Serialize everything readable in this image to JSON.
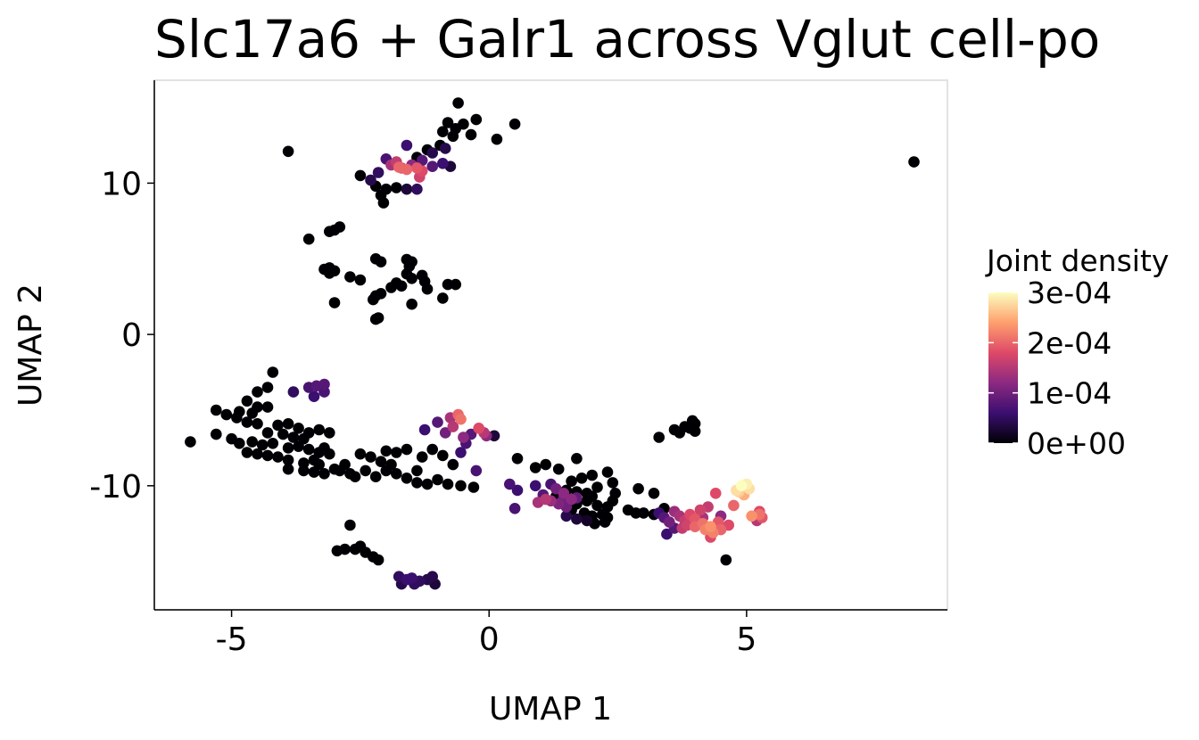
{
  "chart_data": {
    "type": "scatter",
    "title": "Slc17a6 + Galr1 across Vglut cell-po",
    "xlabel": "UMAP 1",
    "ylabel": "UMAP 2",
    "xlim": [
      -6.5,
      8.9
    ],
    "ylim": [
      -18.2,
      16.8
    ],
    "x_ticks": [
      -5,
      0,
      5
    ],
    "x_tick_labels": [
      "-5",
      "0",
      "5"
    ],
    "y_ticks": [
      -10,
      0,
      10
    ],
    "y_tick_labels": [
      "-10",
      "0",
      "10"
    ],
    "grid": false,
    "legend": {
      "title": "Joint density",
      "placement": "right",
      "type": "colorbar",
      "range": [
        0,
        0.0003
      ],
      "ticks": [
        0,
        0.0001,
        0.0002,
        0.0003
      ],
      "tick_labels": [
        "0e+00",
        "1e-04",
        "2e-04",
        "3e-04"
      ],
      "colors": [
        "#000004",
        "#3b0f70",
        "#8c2981",
        "#de4968",
        "#fe9f6d",
        "#fcfdbf"
      ]
    },
    "points": [
      [
        8.25,
        11.4,
        0
      ],
      [
        -3.9,
        12.1,
        0
      ],
      [
        -0.6,
        15.3,
        0
      ],
      [
        -0.8,
        14.0,
        0
      ],
      [
        -0.5,
        13.9,
        0
      ],
      [
        -0.65,
        13.6,
        0
      ],
      [
        -0.9,
        13.4,
        0
      ],
      [
        -0.7,
        13.1,
        0
      ],
      [
        0.5,
        13.9,
        0
      ],
      [
        -0.25,
        14.2,
        0
      ],
      [
        -0.35,
        13.2,
        0
      ],
      [
        0.15,
        12.9,
        0
      ],
      [
        -0.95,
        12.5,
        0
      ],
      [
        -1.2,
        12.2,
        0
      ],
      [
        -1.4,
        11.7,
        0
      ],
      [
        -1.1,
        12.0,
        4e-05
      ],
      [
        -0.85,
        12.3,
        4e-05
      ],
      [
        -1.6,
        12.5,
        6e-05
      ],
      [
        -1.3,
        11.5,
        8e-05
      ],
      [
        -1.5,
        11.2,
        0.00012
      ],
      [
        -1.8,
        11.4,
        0.00016
      ],
      [
        -1.7,
        11.0,
        0.00018
      ],
      [
        -1.6,
        10.9,
        0.0002
      ],
      [
        -1.4,
        11.0,
        0.00019
      ],
      [
        -1.3,
        10.8,
        0.00018
      ],
      [
        -1.35,
        10.4,
        0.00017
      ],
      [
        -1.9,
        11.2,
        0.00014
      ],
      [
        -1.75,
        11.05,
        0.0002
      ],
      [
        -2.0,
        11.6,
        7e-05
      ],
      [
        -1.1,
        11.1,
        8e-05
      ],
      [
        -0.9,
        11.3,
        6e-05
      ],
      [
        -0.75,
        11.1,
        3e-05
      ],
      [
        -2.15,
        10.7,
        5e-05
      ],
      [
        -2.3,
        10.2,
        4e-05
      ],
      [
        -2.5,
        10.5,
        0
      ],
      [
        -2.2,
        9.8,
        0
      ],
      [
        -2.0,
        9.6,
        0
      ],
      [
        -1.8,
        9.7,
        0
      ],
      [
        -1.6,
        9.6,
        3e-05
      ],
      [
        -1.4,
        9.6,
        5e-05
      ],
      [
        -2.1,
        9.2,
        0
      ],
      [
        -2.05,
        8.7,
        0
      ],
      [
        -3.5,
        6.3,
        0
      ],
      [
        -3.1,
        6.8,
        0
      ],
      [
        -3.0,
        6.9,
        0
      ],
      [
        -2.9,
        7.1,
        0
      ],
      [
        -3.2,
        4.3,
        0
      ],
      [
        -3.1,
        4.4,
        0
      ],
      [
        -3.0,
        4.2,
        0
      ],
      [
        -3.1,
        4.05,
        0
      ],
      [
        -2.7,
        3.8,
        0
      ],
      [
        -2.5,
        3.6,
        0
      ],
      [
        -3.0,
        2.1,
        0
      ],
      [
        -2.2,
        5.0,
        0
      ],
      [
        -2.1,
        4.8,
        0
      ],
      [
        -1.6,
        4.95,
        0
      ],
      [
        -1.5,
        4.8,
        0
      ],
      [
        -1.55,
        4.5,
        0
      ],
      [
        -1.6,
        4.0,
        0
      ],
      [
        -1.5,
        3.7,
        0
      ],
      [
        -1.3,
        3.9,
        0
      ],
      [
        -1.25,
        3.5,
        0
      ],
      [
        -1.8,
        3.4,
        0
      ],
      [
        -1.9,
        3.1,
        0
      ],
      [
        -1.7,
        3.2,
        0
      ],
      [
        -1.2,
        3.0,
        0
      ],
      [
        -0.8,
        3.3,
        0
      ],
      [
        -0.65,
        3.3,
        0
      ],
      [
        -2.2,
        2.55,
        0
      ],
      [
        -2.1,
        2.7,
        0
      ],
      [
        -2.25,
        2.3,
        0
      ],
      [
        -1.5,
        2.0,
        0
      ],
      [
        -0.9,
        2.4,
        0
      ],
      [
        -2.2,
        1.0,
        0
      ],
      [
        -2.15,
        1.1,
        0
      ],
      [
        -4.2,
        -2.5,
        0
      ],
      [
        -4.3,
        -3.5,
        0
      ],
      [
        -4.5,
        -3.8,
        0
      ],
      [
        -4.7,
        -4.4,
        0
      ],
      [
        -4.5,
        -4.8,
        0
      ],
      [
        -4.3,
        -4.8,
        0
      ],
      [
        -5.3,
        -5.0,
        0
      ],
      [
        -5.1,
        -5.3,
        0
      ],
      [
        -4.85,
        -5.1,
        0
      ],
      [
        -4.6,
        -5.2,
        0
      ],
      [
        -4.9,
        -5.5,
        0
      ],
      [
        -4.7,
        -5.8,
        0
      ],
      [
        -4.5,
        -5.9,
        0
      ],
      [
        -4.1,
        -6.0,
        0
      ],
      [
        -3.9,
        -5.9,
        0
      ],
      [
        -3.7,
        -6.2,
        0
      ],
      [
        -3.3,
        -6.3,
        0
      ],
      [
        -3.5,
        -6.5,
        0
      ],
      [
        -3.1,
        -6.5,
        0
      ],
      [
        -4.3,
        -6.5,
        0
      ],
      [
        -4.0,
        -6.6,
        0
      ],
      [
        -3.8,
        -6.8,
        0
      ],
      [
        -3.6,
        -6.9,
        0
      ],
      [
        -5.3,
        -6.6,
        0
      ],
      [
        -5.0,
        -6.9,
        0
      ],
      [
        -4.85,
        -7.2,
        0
      ],
      [
        -4.6,
        -7.1,
        0
      ],
      [
        -4.4,
        -7.3,
        0
      ],
      [
        -4.2,
        -7.2,
        0
      ],
      [
        -3.9,
        -7.5,
        0
      ],
      [
        -3.7,
        -7.4,
        0
      ],
      [
        -3.5,
        -7.6,
        0
      ],
      [
        -3.3,
        -7.8,
        0
      ],
      [
        -3.2,
        -7.5,
        0
      ],
      [
        -3.1,
        -7.9,
        0
      ],
      [
        -5.8,
        -7.1,
        0
      ],
      [
        -4.7,
        -7.8,
        0
      ],
      [
        -4.5,
        -7.9,
        0
      ],
      [
        -4.3,
        -8.0,
        0
      ],
      [
        -4.1,
        -8.1,
        0
      ],
      [
        -3.9,
        -8.3,
        0
      ],
      [
        -3.6,
        -8.5,
        0
      ],
      [
        -3.4,
        -8.3,
        0
      ],
      [
        -3.3,
        -8.6,
        0
      ],
      [
        -3.9,
        -8.9,
        0
      ],
      [
        -3.6,
        -9.0,
        0
      ],
      [
        -3.4,
        -9.1,
        0
      ],
      [
        -3.2,
        -9.2,
        0
      ],
      [
        -2.9,
        -9.0,
        0
      ],
      [
        -2.7,
        -9.2,
        0
      ],
      [
        -2.6,
        -9.4,
        0
      ],
      [
        -2.4,
        -9.0,
        0
      ],
      [
        -2.2,
        -9.4,
        0
      ],
      [
        -2.0,
        -9.0,
        0
      ],
      [
        -1.8,
        -9.2,
        0
      ],
      [
        -1.6,
        -9.5,
        0
      ],
      [
        -1.4,
        -9.8,
        0
      ],
      [
        -1.2,
        -9.9,
        0
      ],
      [
        -1.0,
        -9.6,
        0
      ],
      [
        -0.8,
        -9.9,
        0
      ],
      [
        -0.55,
        -10.0,
        0
      ],
      [
        -0.3,
        -10.1,
        0
      ],
      [
        -2.5,
        -7.9,
        0
      ],
      [
        -2.3,
        -8.1,
        0
      ],
      [
        -2.0,
        -7.7,
        0
      ],
      [
        -1.8,
        -7.8,
        0
      ],
      [
        -1.6,
        -7.6,
        0
      ],
      [
        -1.3,
        -8.1,
        0
      ],
      [
        -1.1,
        -7.6,
        0
      ],
      [
        -0.9,
        -8.0,
        0
      ],
      [
        -0.7,
        -8.6,
        0
      ],
      [
        -2.1,
        -8.4,
        0
      ],
      [
        -1.9,
        -8.6,
        0
      ],
      [
        -1.4,
        -9.0,
        0
      ],
      [
        -3.0,
        -8.9,
        0
      ],
      [
        -2.8,
        -8.6,
        0
      ],
      [
        -3.8,
        -3.8,
        5e-05
      ],
      [
        -3.5,
        -3.5,
        7e-05
      ],
      [
        -3.35,
        -3.4,
        8e-05
      ],
      [
        -3.2,
        -3.3,
        8e-05
      ],
      [
        -3.2,
        -3.8,
        7e-05
      ],
      [
        -3.4,
        -4.1,
        6e-05
      ],
      [
        -1.25,
        -6.3,
        6e-05
      ],
      [
        -1.0,
        -5.8,
        8e-05
      ],
      [
        -0.75,
        -5.5,
        0.00014
      ],
      [
        -0.6,
        -5.3,
        0.0002
      ],
      [
        -0.55,
        -5.6,
        0.00021
      ],
      [
        -0.7,
        -6.1,
        0.00015
      ],
      [
        -0.85,
        -6.5,
        0.0001
      ],
      [
        -0.5,
        -6.8,
        0.00012
      ],
      [
        -0.35,
        -6.6,
        8e-05
      ],
      [
        -0.2,
        -6.2,
        0.00018
      ],
      [
        -0.1,
        -6.5,
        0.00015
      ],
      [
        -0.05,
        -6.7,
        0.00012
      ],
      [
        0.1,
        -6.7,
        3e-05
      ],
      [
        -0.45,
        -7.2,
        7e-05
      ],
      [
        -0.55,
        -7.8,
        6e-05
      ],
      [
        -0.25,
        -9.0,
        7e-05
      ],
      [
        -2.7,
        -12.6,
        0
      ],
      [
        -2.95,
        -14.3,
        0
      ],
      [
        -2.8,
        -14.2,
        0
      ],
      [
        -2.6,
        -14.2,
        0
      ],
      [
        -2.5,
        -14.0,
        0
      ],
      [
        -2.4,
        -14.4,
        0
      ],
      [
        -2.25,
        -14.7,
        0
      ],
      [
        -2.15,
        -14.9,
        0
      ],
      [
        -1.75,
        -16.0,
        5e-05
      ],
      [
        -1.6,
        -16.2,
        6e-05
      ],
      [
        -1.5,
        -16.1,
        6e-05
      ],
      [
        -1.45,
        -16.5,
        5e-05
      ],
      [
        -1.35,
        -16.3,
        5e-05
      ],
      [
        -1.2,
        -16.2,
        4e-05
      ],
      [
        -1.1,
        -16.0,
        4e-05
      ],
      [
        -1.05,
        -16.5,
        3e-05
      ],
      [
        -1.7,
        -16.5,
        4e-05
      ],
      [
        0.55,
        -8.2,
        0
      ],
      [
        0.9,
        -8.8,
        0
      ],
      [
        1.1,
        -8.6,
        0
      ],
      [
        1.35,
        -8.9,
        0
      ],
      [
        1.7,
        -8.2,
        0
      ],
      [
        1.6,
        -9.7,
        0
      ],
      [
        1.8,
        -9.5,
        0
      ],
      [
        2.0,
        -9.3,
        0
      ],
      [
        2.3,
        -9.1,
        0
      ],
      [
        2.4,
        -9.8,
        0
      ],
      [
        2.1,
        -10.1,
        0
      ],
      [
        1.9,
        -10.5,
        0
      ],
      [
        1.7,
        -10.4,
        0
      ],
      [
        1.5,
        -10.3,
        0
      ],
      [
        1.3,
        -10.7,
        0
      ],
      [
        1.5,
        -10.9,
        0
      ],
      [
        1.7,
        -11.2,
        0
      ],
      [
        1.9,
        -11.0,
        0
      ],
      [
        2.1,
        -11.3,
        0
      ],
      [
        2.3,
        -11.4,
        0
      ],
      [
        1.6,
        -11.6,
        0
      ],
      [
        1.85,
        -11.8,
        0
      ],
      [
        2.0,
        -12.0,
        0
      ],
      [
        2.2,
        -11.9,
        0
      ],
      [
        2.3,
        -12.1,
        0
      ],
      [
        1.9,
        -12.3,
        2e-05
      ],
      [
        1.7,
        -12.2,
        3e-05
      ],
      [
        2.05,
        -12.5,
        0
      ],
      [
        2.25,
        -12.4,
        0
      ],
      [
        1.5,
        -12.0,
        4e-05
      ],
      [
        2.4,
        -11.0,
        0
      ],
      [
        2.45,
        -10.5,
        0
      ],
      [
        2.0,
        -10.7,
        0
      ],
      [
        2.7,
        -11.6,
        0
      ],
      [
        2.85,
        -11.8,
        0
      ],
      [
        3.0,
        -11.8,
        0
      ],
      [
        3.2,
        -11.9,
        0
      ],
      [
        3.4,
        -11.5,
        0
      ],
      [
        2.9,
        -10.2,
        0
      ],
      [
        3.2,
        -10.5,
        0
      ],
      [
        3.3,
        -6.8,
        0
      ],
      [
        3.6,
        -6.3,
        0
      ],
      [
        3.8,
        -6.1,
        0
      ],
      [
        3.9,
        -6.2,
        0
      ],
      [
        4.0,
        -5.9,
        0
      ],
      [
        3.95,
        -5.7,
        0
      ],
      [
        4.0,
        -6.4,
        0
      ],
      [
        3.7,
        -6.5,
        0
      ],
      [
        4.6,
        -14.9,
        0
      ],
      [
        0.4,
        -9.9,
        7e-05
      ],
      [
        0.55,
        -10.3,
        6e-05
      ],
      [
        0.5,
        -11.5,
        7e-05
      ],
      [
        0.9,
        -10.0,
        6e-05
      ],
      [
        1.05,
        -10.6,
        8e-05
      ],
      [
        1.2,
        -9.9,
        7e-05
      ],
      [
        1.3,
        -10.2,
        0.0001
      ],
      [
        1.45,
        -10.5,
        0.00012
      ],
      [
        1.45,
        -10.8,
        0.0001
      ],
      [
        1.35,
        -11.2,
        0.00011
      ],
      [
        1.2,
        -11.0,
        0.00013
      ],
      [
        1.1,
        -10.9,
        0.00015
      ],
      [
        0.95,
        -11.1,
        0.00014
      ],
      [
        1.6,
        -10.9,
        0.00012
      ],
      [
        1.5,
        -11.4,
        0.0001
      ],
      [
        1.7,
        -10.8,
        9e-05
      ],
      [
        3.3,
        -11.8,
        6e-05
      ],
      [
        3.4,
        -12.1,
        8e-05
      ],
      [
        3.5,
        -12.4,
        0.0001
      ],
      [
        3.6,
        -12.8,
        8e-05
      ],
      [
        3.45,
        -13.2,
        6e-05
      ],
      [
        3.7,
        -12.0,
        0.00014
      ],
      [
        3.8,
        -12.3,
        0.00016
      ],
      [
        3.6,
        -11.7,
        0.00013
      ],
      [
        3.9,
        -11.9,
        0.00018
      ],
      [
        4.0,
        -12.2,
        0.00019
      ],
      [
        3.85,
        -12.6,
        0.00017
      ],
      [
        3.75,
        -12.8,
        0.00016
      ],
      [
        4.0,
        -12.7,
        0.0002
      ],
      [
        4.15,
        -12.5,
        0.00021
      ],
      [
        4.2,
        -12.9,
        0.00022
      ],
      [
        4.3,
        -12.7,
        0.00023
      ],
      [
        4.35,
        -13.1,
        0.00022
      ],
      [
        4.5,
        -12.9,
        0.0002
      ],
      [
        4.45,
        -12.4,
        0.00019
      ],
      [
        4.1,
        -11.6,
        0.00017
      ],
      [
        4.25,
        -11.4,
        0.00016
      ],
      [
        4.3,
        -13.4,
        0.00018
      ],
      [
        4.65,
        -12.6,
        0.00018
      ],
      [
        4.75,
        -11.3,
        0.0002
      ],
      [
        4.4,
        -10.5,
        0.00018
      ],
      [
        4.5,
        -12.0,
        0.00012
      ],
      [
        4.15,
        -12.1,
        0.00014
      ],
      [
        4.8,
        -10.3,
        0.00028
      ],
      [
        4.9,
        -10.0,
        0.0003
      ],
      [
        5.0,
        -9.9,
        0.00029
      ],
      [
        5.05,
        -10.2,
        0.00028
      ],
      [
        4.85,
        -10.4,
        0.00027
      ],
      [
        4.95,
        -10.6,
        0.00025
      ],
      [
        5.1,
        -12.0,
        0.00023
      ],
      [
        5.25,
        -11.9,
        0.00021
      ],
      [
        5.3,
        -12.1,
        0.00019
      ],
      [
        5.25,
        -11.7,
        0.00018
      ],
      [
        5.2,
        -12.3,
        0.00015
      ]
    ]
  }
}
